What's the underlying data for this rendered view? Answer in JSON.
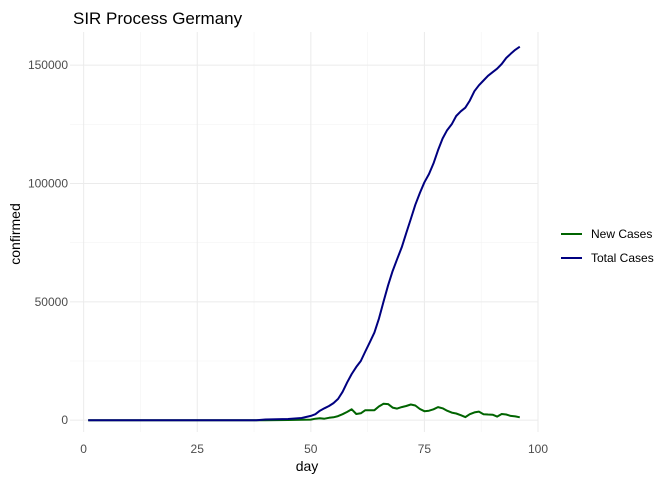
{
  "chart_data": {
    "type": "line",
    "title": "SIR Process Germany",
    "xlabel": "day",
    "ylabel": "confirmed",
    "xlim": [
      -3,
      100
    ],
    "ylim": [
      -5000,
      164000
    ],
    "x_ticks": [
      0,
      25,
      50,
      75,
      100
    ],
    "x_tick_labels": [
      "0",
      "25",
      "50",
      "75",
      "100"
    ],
    "y_ticks": [
      0,
      50000,
      100000,
      150000
    ],
    "y_tick_labels": [
      "0",
      "50000",
      "100000",
      "150000"
    ],
    "grid": true,
    "legend_position": "right",
    "series": [
      {
        "name": "New Cases",
        "color": "#006400",
        "points": [
          [
            1,
            0
          ],
          [
            10,
            0
          ],
          [
            20,
            0
          ],
          [
            30,
            0
          ],
          [
            40,
            0
          ],
          [
            45,
            50
          ],
          [
            48,
            150
          ],
          [
            50,
            250
          ],
          [
            51,
            600
          ],
          [
            52,
            800
          ],
          [
            53,
            600
          ],
          [
            54,
            1000
          ],
          [
            55,
            1200
          ],
          [
            56,
            1700
          ],
          [
            57,
            2500
          ],
          [
            58,
            3500
          ],
          [
            59,
            4600
          ],
          [
            60,
            2600
          ],
          [
            61,
            2900
          ],
          [
            62,
            4200
          ],
          [
            63,
            4200
          ],
          [
            64,
            4200
          ],
          [
            65,
            5800
          ],
          [
            66,
            6900
          ],
          [
            67,
            6800
          ],
          [
            68,
            5300
          ],
          [
            69,
            4900
          ],
          [
            70,
            5500
          ],
          [
            71,
            6000
          ],
          [
            72,
            6600
          ],
          [
            73,
            6200
          ],
          [
            74,
            4700
          ],
          [
            75,
            3800
          ],
          [
            76,
            4000
          ],
          [
            77,
            4600
          ],
          [
            78,
            5500
          ],
          [
            79,
            5000
          ],
          [
            80,
            4000
          ],
          [
            81,
            3200
          ],
          [
            82,
            2800
          ],
          [
            83,
            2100
          ],
          [
            84,
            1300
          ],
          [
            85,
            2500
          ],
          [
            86,
            3300
          ],
          [
            87,
            3600
          ],
          [
            88,
            2500
          ],
          [
            89,
            2400
          ],
          [
            90,
            2300
          ],
          [
            91,
            1500
          ],
          [
            92,
            2600
          ],
          [
            93,
            2400
          ],
          [
            94,
            1800
          ],
          [
            95,
            1600
          ],
          [
            96,
            1200
          ]
        ]
      },
      {
        "name": "Total Cases",
        "color": "#000080",
        "points": [
          [
            1,
            0
          ],
          [
            10,
            0
          ],
          [
            20,
            0
          ],
          [
            30,
            0
          ],
          [
            38,
            0
          ],
          [
            40,
            300
          ],
          [
            45,
            500
          ],
          [
            48,
            900
          ],
          [
            50,
            1800
          ],
          [
            51,
            2500
          ],
          [
            52,
            4000
          ],
          [
            53,
            5000
          ],
          [
            54,
            6000
          ],
          [
            55,
            7200
          ],
          [
            56,
            9000
          ],
          [
            57,
            12000
          ],
          [
            58,
            16000
          ],
          [
            59,
            19500
          ],
          [
            60,
            22500
          ],
          [
            61,
            25000
          ],
          [
            62,
            29000
          ],
          [
            63,
            33000
          ],
          [
            64,
            37000
          ],
          [
            65,
            43000
          ],
          [
            66,
            50000
          ],
          [
            67,
            57000
          ],
          [
            68,
            63000
          ],
          [
            69,
            68000
          ],
          [
            70,
            73000
          ],
          [
            71,
            79000
          ],
          [
            72,
            85000
          ],
          [
            73,
            91000
          ],
          [
            74,
            96000
          ],
          [
            75,
            100500
          ],
          [
            76,
            104000
          ],
          [
            77,
            108500
          ],
          [
            78,
            114000
          ],
          [
            79,
            119000
          ],
          [
            80,
            122500
          ],
          [
            81,
            125000
          ],
          [
            82,
            128500
          ],
          [
            83,
            130500
          ],
          [
            84,
            132000
          ],
          [
            85,
            135000
          ],
          [
            86,
            139000
          ],
          [
            87,
            141500
          ],
          [
            88,
            143500
          ],
          [
            89,
            145500
          ],
          [
            90,
            147000
          ],
          [
            91,
            148500
          ],
          [
            92,
            150500
          ],
          [
            93,
            153000
          ],
          [
            94,
            154800
          ],
          [
            95,
            156500
          ],
          [
            96,
            157800
          ]
        ]
      }
    ]
  }
}
